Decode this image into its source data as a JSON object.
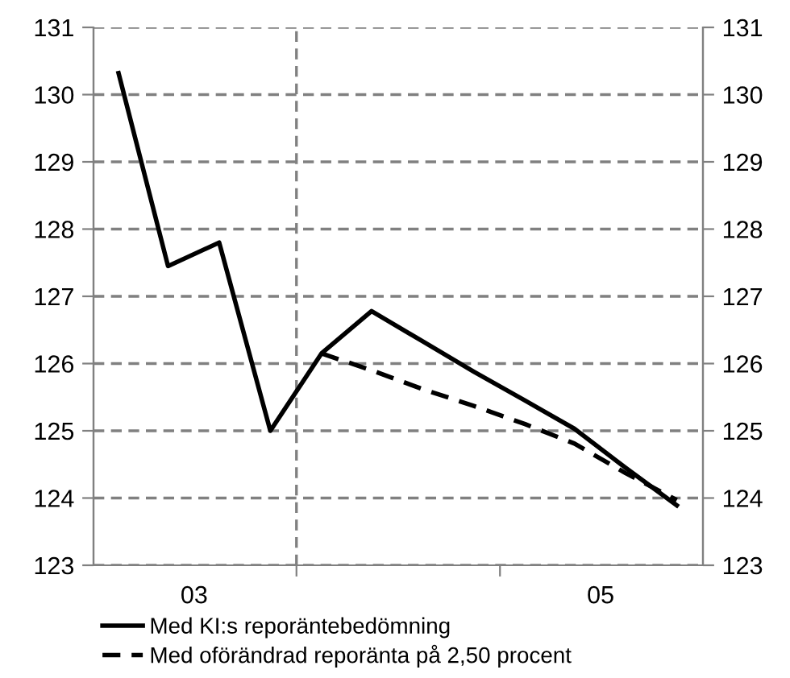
{
  "chart_data": {
    "type": "line",
    "x": [
      "2003-02-15",
      "2003-05-15",
      "2003-08-15",
      "2003-11-15",
      "2004-02-15",
      "2004-05-15",
      "2004-08-15",
      "2004-11-15",
      "2005-02-15",
      "2005-05-15",
      "2005-08-15",
      "2005-11-15"
    ],
    "series": [
      {
        "name": "Med KI:s reporäntebedömning",
        "color": "#000000",
        "line_style": "solid",
        "values": [
          130.32,
          127.45,
          127.8,
          125.0,
          126.15,
          126.78,
          126.33,
          125.88,
          125.45,
          125.03,
          124.45,
          123.89
        ]
      },
      {
        "name": "Med oförändrad reporänta på 2,50 procent",
        "color": "#000000",
        "line_style": "dashed",
        "values": [
          null,
          null,
          null,
          null,
          126.15,
          125.9,
          125.62,
          125.37,
          125.1,
          124.81,
          124.37,
          123.97
        ]
      }
    ],
    "xlim": [
      "2003-01-01",
      "2006-01-01"
    ],
    "xticks": [
      {
        "value": "2003-07-01",
        "label": "03"
      },
      {
        "value": "2004-01-01",
        "label": null
      },
      {
        "value": "2005-01-01",
        "label": null
      },
      {
        "value": "2005-07-01",
        "label": "05"
      }
    ],
    "ylim": [
      123,
      131
    ],
    "yticks": [
      123,
      124,
      125,
      126,
      127,
      128,
      129,
      130,
      131
    ],
    "y2lim": [
      123,
      131
    ],
    "y2ticks": [
      123,
      124,
      125,
      126,
      127,
      128,
      129,
      130,
      131
    ],
    "ref_lines": [
      {
        "axis": "x",
        "value": "2004-01-01",
        "label": null,
        "color": "#808080",
        "line_style": "dashed"
      }
    ],
    "grid": "y",
    "legend": "bottom left",
    "marker": "none"
  }
}
